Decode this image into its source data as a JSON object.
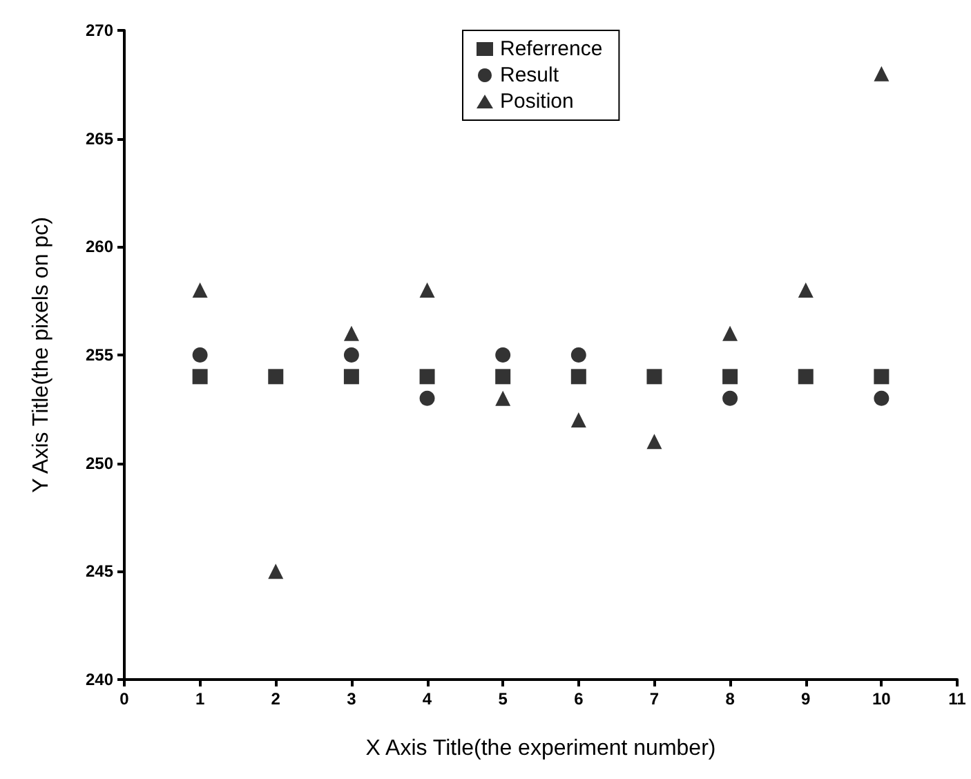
{
  "chart_data": {
    "type": "scatter",
    "xlabel": "X Axis Title(the experiment number)",
    "ylabel": "Y Axis Title(the pixels on pc)",
    "x": [
      1,
      2,
      3,
      4,
      5,
      6,
      7,
      8,
      9,
      10
    ],
    "xlim": [
      0,
      11
    ],
    "xticks": [
      0,
      1,
      2,
      3,
      4,
      5,
      6,
      7,
      8,
      9,
      10,
      11
    ],
    "ylim": [
      240,
      270
    ],
    "yticks": [
      240,
      245,
      250,
      255,
      260,
      265,
      270
    ],
    "grid": false,
    "legend": "top",
    "series": [
      {
        "name": "Referrence",
        "color": "#000000",
        "marker": "square",
        "values": [
          254,
          254,
          254,
          254,
          254,
          254,
          254,
          254,
          254,
          254
        ]
      },
      {
        "name": "Result",
        "color": "#000000",
        "marker": "circle",
        "values": [
          255,
          null,
          255,
          253,
          255,
          255,
          null,
          253,
          null,
          253
        ]
      },
      {
        "name": "Position",
        "color": "#000000",
        "marker": "triangle",
        "values": [
          258,
          245,
          256,
          258,
          253,
          252,
          251,
          256,
          258,
          268
        ]
      }
    ]
  }
}
